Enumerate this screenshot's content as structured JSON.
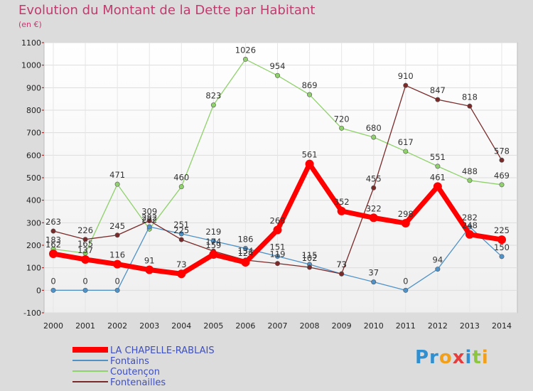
{
  "chart_data": {
    "type": "line",
    "title": "Evolution du Montant de la Dette par Habitant",
    "subtitle": "(en €)",
    "x": [
      "2000",
      "2001",
      "2002",
      "2003",
      "2004",
      "2005",
      "2006",
      "2007",
      "2008",
      "2009",
      "2010",
      "2011",
      "2012",
      "2013",
      "2014"
    ],
    "ylim": [
      -100,
      1100
    ],
    "yticks": [
      "-100",
      "0",
      "100",
      "200",
      "300",
      "400",
      "500",
      "600",
      "700",
      "800",
      "900",
      "1000",
      "1100"
    ],
    "grid": true,
    "legend_position": "bottom-left",
    "series": [
      {
        "name": "LA CHAPELLE-RABLAIS",
        "color": "#ff0000",
        "values": [
          162,
          137,
          116,
          91,
          73,
          159,
          124,
          268,
          561,
          352,
          322,
          298,
          461,
          248,
          225
        ],
        "labels": [
          "162",
          "137",
          "116",
          "91",
          "73",
          "159",
          "124",
          "268",
          "561",
          "352",
          "322",
          "298",
          "461",
          "248",
          "225"
        ]
      },
      {
        "name": "Fontains",
        "color": "#4f92c8",
        "values": [
          0,
          0,
          0,
          282,
          251,
          219,
          186,
          151,
          115,
          73,
          37,
          0,
          94,
          282,
          150
        ],
        "labels": [
          "0",
          "0",
          "0",
          "282",
          "251",
          "219",
          "186",
          "151",
          "115",
          "73",
          "37",
          "0",
          "94",
          "282",
          "150"
        ]
      },
      {
        "name": "Coutençon",
        "color": "#8fd16b",
        "values": [
          183,
          165,
          471,
          272,
          460,
          823,
          1026,
          954,
          869,
          720,
          680,
          617,
          551,
          488,
          469
        ],
        "labels": [
          "183",
          "165",
          "471",
          "272",
          "460",
          "823",
          "1026",
          "954",
          "869",
          "720",
          "680",
          "617",
          "551",
          "488",
          "469"
        ]
      },
      {
        "name": "Fontenailles",
        "color": "#7b2a2a",
        "values": [
          263,
          226,
          245,
          309,
          225,
          174,
          134,
          119,
          102,
          73,
          455,
          910,
          847,
          818,
          578
        ],
        "labels": [
          "263",
          "226",
          "245",
          "309",
          "225",
          "174",
          "134",
          "119",
          "102",
          "73",
          "455",
          "910",
          "847",
          "818",
          "578"
        ]
      }
    ]
  },
  "logo": {
    "parts": [
      "Pr",
      "o",
      "x",
      "i",
      "t",
      "i"
    ]
  }
}
